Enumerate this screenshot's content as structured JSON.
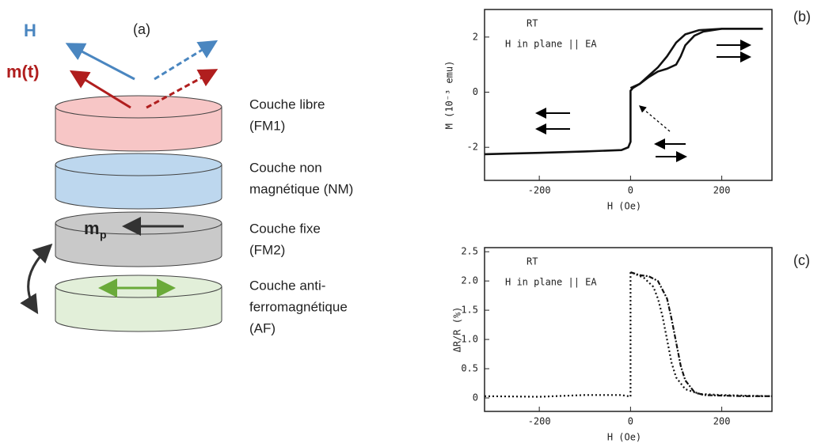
{
  "panel_labels": [
    "(a)",
    "(b)",
    "(c)"
  ],
  "diagram": {
    "field": "H",
    "moment": "m(t)",
    "pinned": {
      "symbol": "m",
      "subscript": "p"
    },
    "layers": [
      {
        "lines": [
          "Couche libre",
          "(FM1)"
        ]
      },
      {
        "lines": [
          "Couche non",
          "magnétique (NM)"
        ]
      },
      {
        "lines": [
          "Couche fixe",
          "(FM2)"
        ]
      },
      {
        "lines": [
          "Couche anti-",
          "ferromagnétique",
          "(AF)"
        ]
      }
    ]
  },
  "chart_data": [
    {
      "type": "line",
      "annotations": [
        "RT",
        "H in plane || EA"
      ],
      "x_label": "H (Oe)",
      "y_label": "M (10⁻³ emu)",
      "xlim": [
        -320,
        310
      ],
      "ylim": [
        -3.2,
        3
      ],
      "xticks": [
        -200,
        0,
        200
      ],
      "yticks": [
        -2,
        0,
        2
      ],
      "style": "solid",
      "series": [
        {
          "color": "#111111",
          "x": [
            -320,
            -200,
            -100,
            -20,
            -5,
            0,
            0,
            5,
            20,
            40,
            60,
            80,
            100,
            120,
            150,
            200,
            250,
            290
          ],
          "values": [
            -2.25,
            -2.2,
            -2.15,
            -2.1,
            -2.0,
            -1.8,
            0.05,
            0.15,
            0.3,
            0.6,
            0.9,
            1.3,
            1.8,
            2.1,
            2.25,
            2.3,
            2.3,
            2.3
          ]
        },
        {
          "color": "#111111",
          "x": [
            0,
            20,
            40,
            60,
            80,
            100,
            110,
            120,
            140,
            160,
            200,
            250,
            290
          ],
          "values": [
            0.15,
            0.3,
            0.55,
            0.75,
            0.85,
            1.0,
            1.3,
            1.7,
            2.05,
            2.2,
            2.3,
            2.3,
            2.3
          ]
        }
      ]
    },
    {
      "type": "line",
      "annotations": [
        "RT",
        "H in plane || EA"
      ],
      "x_label": "H (Oe)",
      "y_label": "ΔR/R (%)",
      "xlim": [
        -320,
        310
      ],
      "ylim": [
        -0.23,
        2.57
      ],
      "xticks": [
        -200,
        0,
        200
      ],
      "yticks": [
        0,
        0.5,
        {
          "value": 1,
          "label": "1.0"
        },
        1.5,
        {
          "value": 2,
          "label": "2.0"
        },
        2.5
      ],
      "style": "dotted",
      "series": [
        {
          "color": "#111111",
          "x": [
            -320,
            -200,
            -100,
            -20,
            -5,
            0,
            0,
            10,
            30,
            50,
            60,
            70,
            80,
            90,
            100,
            120,
            150,
            200,
            250,
            310
          ],
          "values": [
            0.03,
            0.02,
            0.05,
            0.05,
            0.03,
            0.02,
            2.15,
            2.12,
            2.05,
            1.9,
            1.7,
            1.4,
            1.0,
            0.6,
            0.35,
            0.15,
            0.07,
            0.05,
            0.04,
            0.03
          ]
        },
        {
          "color": "#111111",
          "x": [
            0,
            20,
            40,
            60,
            80,
            90,
            100,
            110,
            120,
            140,
            160,
            200,
            250,
            310
          ],
          "values": [
            2.15,
            2.1,
            2.08,
            2.0,
            1.7,
            1.35,
            0.95,
            0.55,
            0.3,
            0.1,
            0.05,
            0.04,
            0.03,
            0.03
          ]
        }
      ]
    }
  ]
}
